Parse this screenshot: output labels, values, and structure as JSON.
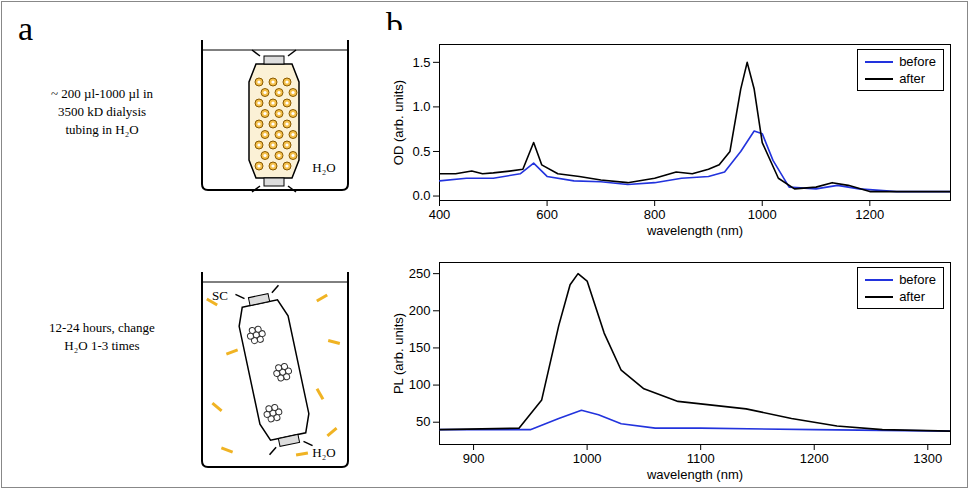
{
  "panel_labels": [
    "a",
    "b"
  ],
  "diagram": {
    "step1": {
      "lines": [
        "~ 200 µl-1000 µl in",
        "3500 kD dialysis",
        "tubing in H₂O"
      ],
      "beaker_label": "H₂O"
    },
    "step2": {
      "lines": [
        "12-24 hours, change",
        "H₂O 1-3 times"
      ],
      "beaker_labels": [
        "SC",
        "H₂O"
      ]
    }
  },
  "chart_data": [
    {
      "type": "line",
      "x_label": "wavelength (nm)",
      "y_label": "OD (arb. units)",
      "xlim": [
        400,
        1350
      ],
      "xticks": [
        400,
        600,
        800,
        1000,
        1200
      ],
      "ylim": [
        -0.05,
        1.7
      ],
      "yticks": [
        {
          "value": 0,
          "label": "0.0"
        },
        0.5,
        {
          "value": 1,
          "label": "1.0"
        },
        1.5
      ],
      "legend": "top-right",
      "series": [
        {
          "name": "before",
          "color": "#2233dd",
          "x": [
            400,
            450,
            500,
            550,
            575,
            600,
            650,
            700,
            750,
            800,
            850,
            900,
            930,
            960,
            985,
            1000,
            1020,
            1050,
            1100,
            1140,
            1180,
            1250,
            1350
          ],
          "values": [
            0.17,
            0.2,
            0.2,
            0.25,
            0.37,
            0.22,
            0.17,
            0.16,
            0.13,
            0.15,
            0.2,
            0.22,
            0.27,
            0.5,
            0.73,
            0.7,
            0.4,
            0.1,
            0.08,
            0.12,
            0.08,
            0.05,
            0.05
          ]
        },
        {
          "name": "after",
          "color": "#000000",
          "x": [
            400,
            430,
            460,
            480,
            500,
            530,
            555,
            575,
            590,
            620,
            660,
            700,
            750,
            800,
            840,
            870,
            900,
            920,
            940,
            960,
            972,
            985,
            1000,
            1030,
            1060,
            1100,
            1130,
            1160,
            1200,
            1350
          ],
          "values": [
            0.25,
            0.25,
            0.28,
            0.25,
            0.26,
            0.28,
            0.3,
            0.6,
            0.35,
            0.25,
            0.22,
            0.18,
            0.15,
            0.2,
            0.27,
            0.25,
            0.3,
            0.35,
            0.5,
            1.2,
            1.5,
            1.2,
            0.6,
            0.2,
            0.08,
            0.1,
            0.15,
            0.12,
            0.05,
            0.05
          ]
        }
      ]
    },
    {
      "type": "line",
      "x_label": "wavelength (nm)",
      "y_label": "PL (arb. units)",
      "xlim": [
        870,
        1320
      ],
      "xticks": [
        900,
        1000,
        1100,
        1200,
        1300
      ],
      "ylim": [
        20,
        265
      ],
      "yticks": [
        50,
        100,
        150,
        200,
        250
      ],
      "legend": "top-right",
      "series": [
        {
          "name": "before",
          "color": "#2233dd",
          "x": [
            870,
            950,
            975,
            995,
            1010,
            1030,
            1060,
            1100,
            1200,
            1320
          ],
          "values": [
            40,
            40,
            55,
            66,
            60,
            48,
            42,
            42,
            40,
            38
          ]
        },
        {
          "name": "after",
          "color": "#000000",
          "x": [
            870,
            940,
            960,
            975,
            985,
            992,
            1000,
            1015,
            1030,
            1050,
            1080,
            1110,
            1140,
            1180,
            1220,
            1260,
            1320
          ],
          "values": [
            40,
            42,
            80,
            180,
            235,
            250,
            240,
            170,
            120,
            95,
            78,
            73,
            68,
            55,
            45,
            40,
            38
          ]
        }
      ]
    }
  ]
}
